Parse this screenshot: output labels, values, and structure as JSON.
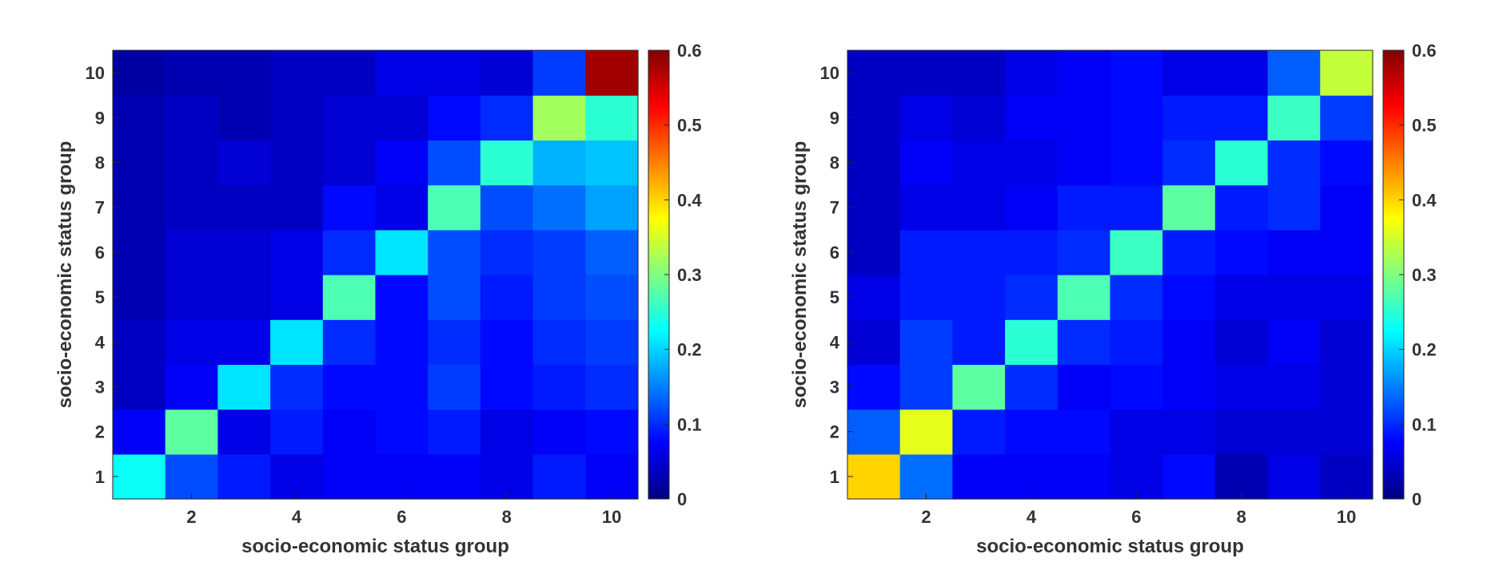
{
  "chart_data": [
    {
      "type": "heatmap",
      "title": "",
      "xlabel": "socio-economic status group",
      "ylabel": "socio-economic status group",
      "x_categories": [
        1,
        2,
        3,
        4,
        5,
        6,
        7,
        8,
        9,
        10
      ],
      "y_categories": [
        1,
        2,
        3,
        4,
        5,
        6,
        7,
        8,
        9,
        10
      ],
      "x_tick_labels": [
        "2",
        "4",
        "6",
        "8",
        "10"
      ],
      "y_tick_labels": [
        "1",
        "2",
        "3",
        "4",
        "5",
        "6",
        "7",
        "8",
        "9",
        "10"
      ],
      "clim": [
        0,
        0.6
      ],
      "colorbar_ticks": [
        "0",
        "0.1",
        "0.2",
        "0.3",
        "0.4",
        "0.5",
        "0.6"
      ],
      "colormap": "jet",
      "values_row_by_y": [
        [
          0.23,
          0.12,
          0.09,
          0.06,
          0.07,
          0.07,
          0.07,
          0.06,
          0.09,
          0.07
        ],
        [
          0.07,
          0.28,
          0.06,
          0.09,
          0.07,
          0.08,
          0.09,
          0.06,
          0.07,
          0.08
        ],
        [
          0.04,
          0.07,
          0.21,
          0.1,
          0.08,
          0.08,
          0.11,
          0.08,
          0.09,
          0.1
        ],
        [
          0.04,
          0.06,
          0.06,
          0.21,
          0.1,
          0.08,
          0.1,
          0.08,
          0.1,
          0.11
        ],
        [
          0.03,
          0.05,
          0.05,
          0.06,
          0.27,
          0.08,
          0.12,
          0.09,
          0.11,
          0.12
        ],
        [
          0.03,
          0.05,
          0.05,
          0.06,
          0.1,
          0.21,
          0.12,
          0.1,
          0.11,
          0.13
        ],
        [
          0.03,
          0.04,
          0.04,
          0.04,
          0.08,
          0.06,
          0.27,
          0.12,
          0.14,
          0.17
        ],
        [
          0.03,
          0.04,
          0.05,
          0.04,
          0.05,
          0.07,
          0.12,
          0.25,
          0.18,
          0.19
        ],
        [
          0.03,
          0.04,
          0.03,
          0.04,
          0.05,
          0.05,
          0.08,
          0.1,
          0.32,
          0.25
        ],
        [
          0.02,
          0.03,
          0.03,
          0.04,
          0.04,
          0.06,
          0.06,
          0.05,
          0.11,
          0.58
        ]
      ]
    },
    {
      "type": "heatmap",
      "title": "",
      "xlabel": "socio-economic status group",
      "ylabel": "socio-economic status group",
      "x_categories": [
        1,
        2,
        3,
        4,
        5,
        6,
        7,
        8,
        9,
        10
      ],
      "y_categories": [
        1,
        2,
        3,
        4,
        5,
        6,
        7,
        8,
        9,
        10
      ],
      "x_tick_labels": [
        "2",
        "4",
        "6",
        "8",
        "10"
      ],
      "y_tick_labels": [
        "1",
        "2",
        "3",
        "4",
        "5",
        "6",
        "7",
        "8",
        "9",
        "10"
      ],
      "clim": [
        0,
        0.6
      ],
      "colorbar_ticks": [
        "0",
        "0.1",
        "0.2",
        "0.3",
        "0.4",
        "0.5",
        "0.6"
      ],
      "colormap": "jet",
      "values_row_by_y": [
        [
          0.4,
          0.14,
          0.07,
          0.07,
          0.07,
          0.06,
          0.08,
          0.03,
          0.06,
          0.04
        ],
        [
          0.13,
          0.36,
          0.09,
          0.08,
          0.08,
          0.06,
          0.06,
          0.05,
          0.05,
          0.05
        ],
        [
          0.08,
          0.11,
          0.28,
          0.1,
          0.07,
          0.08,
          0.07,
          0.06,
          0.06,
          0.05
        ],
        [
          0.05,
          0.11,
          0.09,
          0.25,
          0.1,
          0.09,
          0.07,
          0.05,
          0.07,
          0.05
        ],
        [
          0.06,
          0.09,
          0.09,
          0.1,
          0.27,
          0.1,
          0.08,
          0.06,
          0.06,
          0.06
        ],
        [
          0.04,
          0.09,
          0.09,
          0.09,
          0.1,
          0.26,
          0.09,
          0.08,
          0.07,
          0.07
        ],
        [
          0.04,
          0.06,
          0.06,
          0.07,
          0.09,
          0.09,
          0.28,
          0.09,
          0.1,
          0.07
        ],
        [
          0.04,
          0.07,
          0.06,
          0.06,
          0.07,
          0.08,
          0.1,
          0.25,
          0.1,
          0.08
        ],
        [
          0.04,
          0.06,
          0.05,
          0.07,
          0.07,
          0.08,
          0.09,
          0.09,
          0.26,
          0.11
        ],
        [
          0.04,
          0.04,
          0.04,
          0.06,
          0.07,
          0.08,
          0.06,
          0.06,
          0.13,
          0.34
        ]
      ]
    }
  ]
}
